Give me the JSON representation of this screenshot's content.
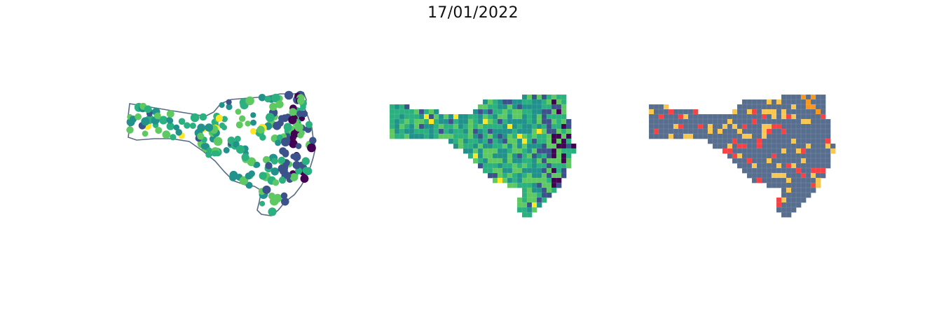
{
  "figure": {
    "title": "17/01/2022"
  },
  "colors": {
    "background": "#ffffff",
    "outline": "#5a6b86",
    "viridis": [
      "#440154",
      "#3b528b",
      "#21918c",
      "#2bb07f",
      "#5ec962",
      "#fde725"
    ],
    "categorical": {
      "base": "#576e8e",
      "medium": "#f9c74f",
      "high": "#f94144",
      "orange": "#f8961e"
    }
  },
  "panels": [
    {
      "name": "point-map",
      "style": "proportional-points"
    },
    {
      "name": "choropleth-map",
      "style": "continuous-viridis"
    },
    {
      "name": "category-map",
      "style": "categorical"
    }
  ]
}
